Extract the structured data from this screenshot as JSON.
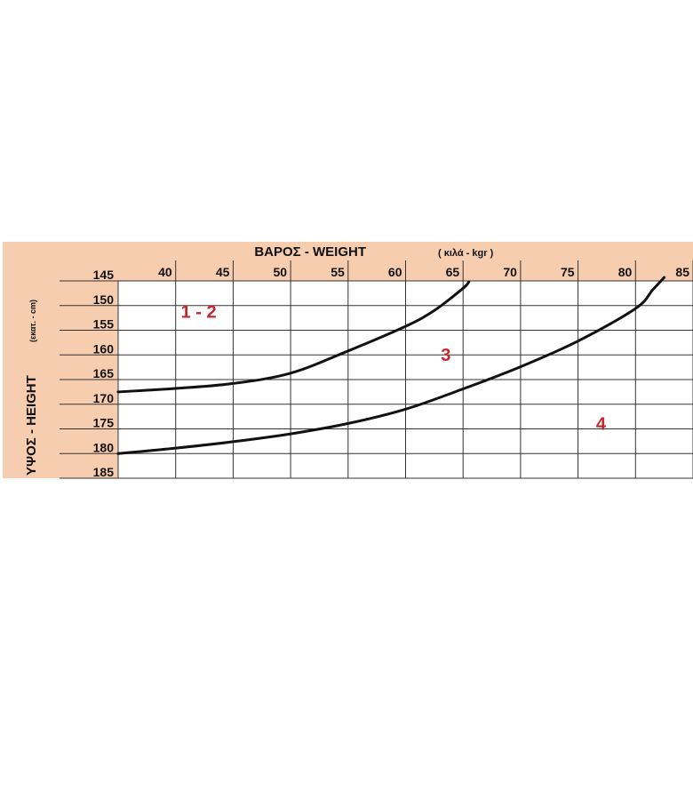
{
  "chart_data": {
    "type": "line",
    "xlabel_main": "ΒΑΡΟΣ  - WEIGHT",
    "xlabel_unit": "( κιλά - kgr )",
    "ylabel_main": "ΥΨΟΣ  -  HEIGHT",
    "ylabel_unit": "(εκατ. - cm)",
    "x_ticks": [
      "40",
      "45",
      "50",
      "55",
      "60",
      "65",
      "70",
      "75",
      "80",
      "85"
    ],
    "y_ticks": [
      "145",
      "150",
      "155",
      "160",
      "165",
      "170",
      "175",
      "180",
      "185"
    ],
    "x_tick_values": [
      40,
      45,
      50,
      55,
      60,
      65,
      70,
      75,
      80,
      85
    ],
    "y_tick_values": [
      145,
      150,
      155,
      160,
      165,
      170,
      175,
      180,
      185
    ],
    "xlim": [
      35,
      85
    ],
    "ylim": [
      145,
      185
    ],
    "grid": true,
    "colors": {
      "panel": "#f7cdb0",
      "grid": "#333333",
      "line": "#111111",
      "zone_label": "#c0282d"
    },
    "series": [
      {
        "values": [
          [
            35,
            167.5
          ],
          [
            40,
            166.8
          ],
          [
            45,
            165.8
          ],
          [
            50,
            163.7
          ],
          [
            55,
            159.2
          ],
          [
            60,
            154.2
          ],
          [
            62.5,
            151.0
          ],
          [
            65,
            146.5
          ],
          [
            65.5,
            145.2
          ]
        ]
      },
      {
        "values": [
          [
            35,
            180.0
          ],
          [
            40,
            178.9
          ],
          [
            45,
            177.6
          ],
          [
            50,
            176.0
          ],
          [
            55,
            173.9
          ],
          [
            60,
            171.0
          ],
          [
            65,
            166.9
          ],
          [
            70,
            162.4
          ],
          [
            75,
            157.2
          ],
          [
            80,
            150.6
          ],
          [
            81.5,
            146.8
          ],
          [
            82.5,
            144.3
          ]
        ]
      }
    ],
    "annotations": [
      {
        "text": "1 - 2",
        "x": 42,
        "y": 152.5
      },
      {
        "text": "3",
        "x": 63.5,
        "y": 161.2
      },
      {
        "text": "4",
        "x": 77,
        "y": 175.2
      }
    ]
  }
}
